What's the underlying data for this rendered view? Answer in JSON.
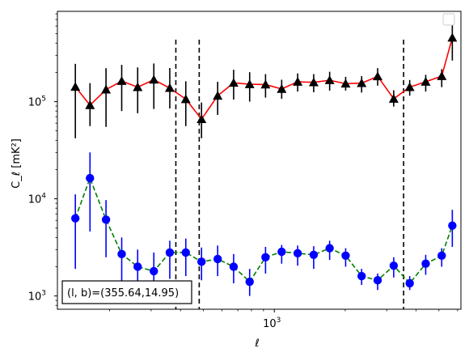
{
  "chart_data": {
    "type": "scatter",
    "xscale": "log",
    "yscale": "log",
    "xlim": [
      120,
      6200
    ],
    "ylim": [
      730,
      850000
    ],
    "xlabel": "ℓ",
    "ylabel": "C_ℓ  [mK²]",
    "grid": false,
    "legend": "top-right",
    "legend_entries": [],
    "x_major_ticks": [
      {
        "value": 1000,
        "base": "10",
        "exp": "3"
      }
    ],
    "y_major_ticks": [
      {
        "value": 1000,
        "base": "10",
        "exp": "3"
      },
      {
        "value": 10000,
        "base": "10",
        "exp": "4"
      },
      {
        "value": 100000,
        "base": "10",
        "exp": "5"
      }
    ],
    "annotation": "(l, b)=(355.64,14.95)",
    "vertical_lines": [
      {
        "x": 382,
        "style": "dashed",
        "color": "#000000"
      },
      {
        "x": 480,
        "style": "dashed",
        "color": "#000000"
      },
      {
        "x": 3540,
        "style": "dashed",
        "color": "#000000"
      }
    ],
    "series": [
      {
        "marker": "triangle",
        "marker_color": "#000000",
        "line_color": "#ff0000",
        "line_style": "solid",
        "errorbar_color": "#000000",
        "x": [
          143,
          165,
          193,
          225,
          263,
          308,
          360,
          421,
          491,
          575,
          672,
          786,
          918,
          1075,
          1257,
          1470,
          1718,
          2009,
          2349,
          2747,
          3214,
          3758,
          4395,
          5140,
          5700
        ],
        "y": [
          142000,
          92000,
          133000,
          163000,
          141000,
          168000,
          138000,
          106000,
          66000,
          115000,
          156000,
          151000,
          150000,
          135000,
          160000,
          158000,
          166000,
          153000,
          155000,
          182000,
          107000,
          141000,
          160000,
          183000,
          455000
        ],
        "yerr_low": [
          100000,
          36000,
          78000,
          83000,
          65000,
          84000,
          53000,
          50000,
          24000,
          42000,
          51000,
          51000,
          40000,
          28000,
          33000,
          33000,
          36000,
          23000,
          31000,
          36000,
          18000,
          26000,
          33000,
          42000,
          190000
        ],
        "yerr_high": [
          103000,
          63000,
          88000,
          76000,
          84000,
          79000,
          84000,
          56000,
          32000,
          45000,
          57000,
          50000,
          42000,
          33000,
          35000,
          34000,
          37000,
          27000,
          28000,
          39000,
          24000,
          26000,
          29000,
          33000,
          185000
        ]
      },
      {
        "marker": "circle",
        "marker_color": "#0000ff",
        "line_color": "#008000",
        "line_style": "dashed",
        "errorbar_color": "#0000ff",
        "x": [
          143,
          165,
          193,
          225,
          263,
          308,
          360,
          421,
          491,
          575,
          672,
          786,
          918,
          1075,
          1257,
          1470,
          1718,
          2009,
          2349,
          2747,
          3214,
          3758,
          4395,
          5140,
          5700
        ],
        "y": [
          6300,
          16300,
          6100,
          2700,
          2000,
          1800,
          2800,
          2800,
          2250,
          2400,
          2000,
          1400,
          2500,
          2850,
          2750,
          2650,
          3100,
          2600,
          1600,
          1450,
          2050,
          1350,
          2150,
          2600,
          5300
        ],
        "yerr_low": [
          4400,
          11700,
          3600,
          1400,
          800,
          600,
          1300,
          1200,
          800,
          800,
          650,
          400,
          800,
          700,
          700,
          750,
          750,
          600,
          300,
          300,
          500,
          200,
          500,
          600,
          2100
        ],
        "yerr_high": [
          4800,
          13700,
          3600,
          1300,
          1000,
          1000,
          900,
          1100,
          900,
          900,
          700,
          500,
          700,
          500,
          550,
          600,
          600,
          500,
          300,
          250,
          450,
          250,
          500,
          500,
          2400
        ]
      }
    ]
  }
}
